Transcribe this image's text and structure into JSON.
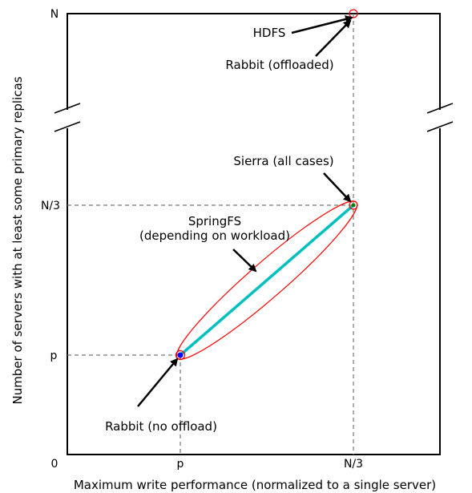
{
  "y_axis": {
    "label": "Number of servers with at least some primary replicas",
    "ticks": [
      "N",
      "N/3",
      "p",
      "0"
    ]
  },
  "x_axis": {
    "label": "Maximum write performance (normalized to a single server)",
    "ticks": [
      "p",
      "N/3"
    ]
  },
  "annotations": {
    "hdfs": "HDFS",
    "rabbit_offloaded": "Rabbit (offloaded)",
    "sierra": "Sierra (all cases)",
    "springfs_line1": "SpringFS",
    "springfs_line2": "(depending on workload)",
    "rabbit_no_offload": "Rabbit (no offload)"
  },
  "colors": {
    "springfs_line": "#00bfbf",
    "ellipse": "#ff0000",
    "rabbit_point": "#0000ff",
    "sierra_point": "#008000"
  }
}
